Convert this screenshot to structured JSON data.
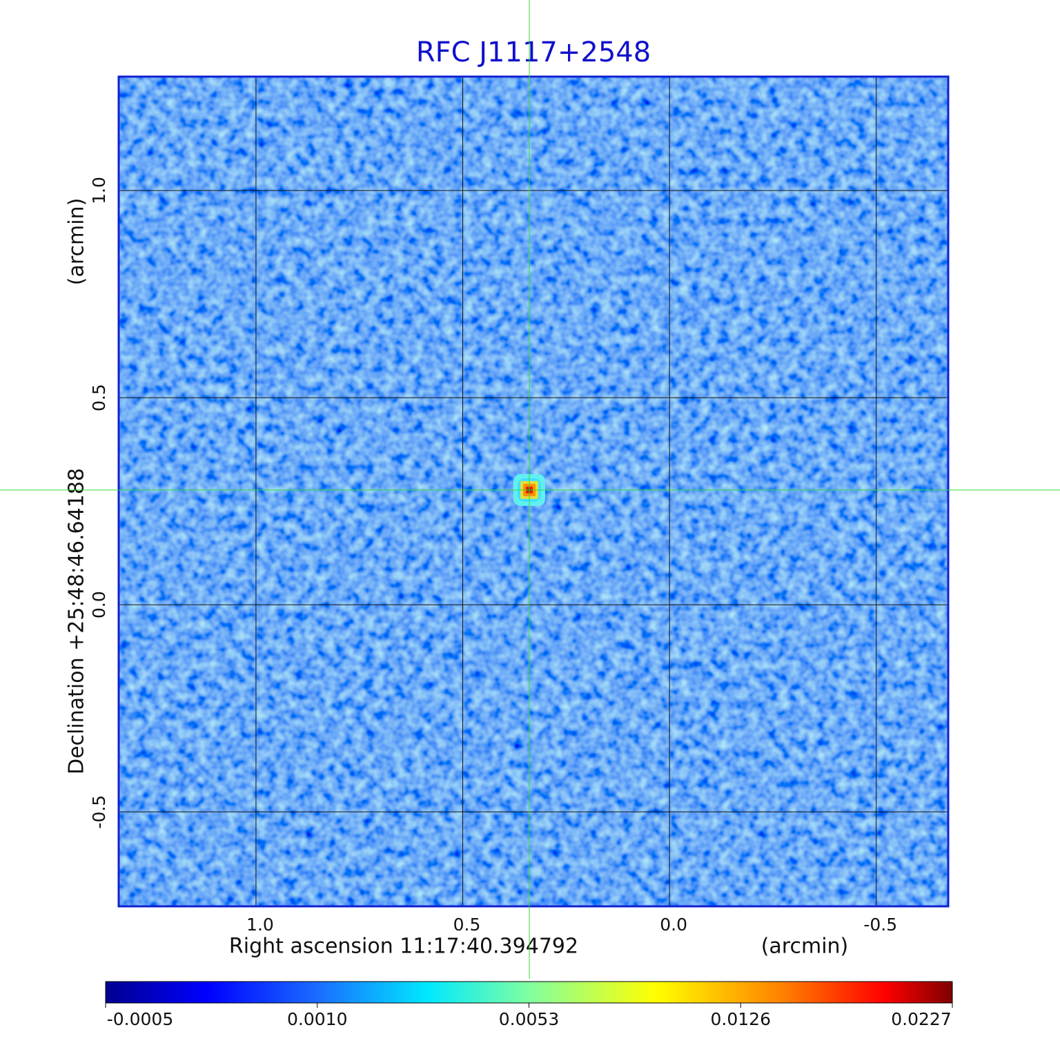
{
  "chart_data": {
    "type": "image",
    "title": "RFC J1117+2548",
    "title_color": "#1010cc",
    "x_label": "Right ascension  11:17:40.394792",
    "x_unit": "(arcmin)",
    "y_label": "Declination  +25:48:46.64188",
    "y_unit": "(arcmin)",
    "xlim": [
      1.332,
      -0.674
    ],
    "ylim": [
      -0.728,
      1.275
    ],
    "xticks": [
      {
        "value": 1.0,
        "label": "1.0"
      },
      0.5,
      {
        "value": 0.0,
        "label": "0.0"
      },
      -0.5
    ],
    "yticks": [
      {
        "value": 1.0,
        "label": "1.0"
      },
      0.5,
      {
        "value": 0.0,
        "label": "0.0"
      },
      -0.5
    ],
    "grid": true,
    "crosshair": {
      "x": 0.339,
      "y": 0.277,
      "color": "#33dd33"
    },
    "colormap": "jet",
    "colorbar_ticks": [
      -0.0005,
      {
        "value": 0.001,
        "label": "0.0010"
      },
      0.0053,
      0.0126,
      0.0227
    ]
  }
}
